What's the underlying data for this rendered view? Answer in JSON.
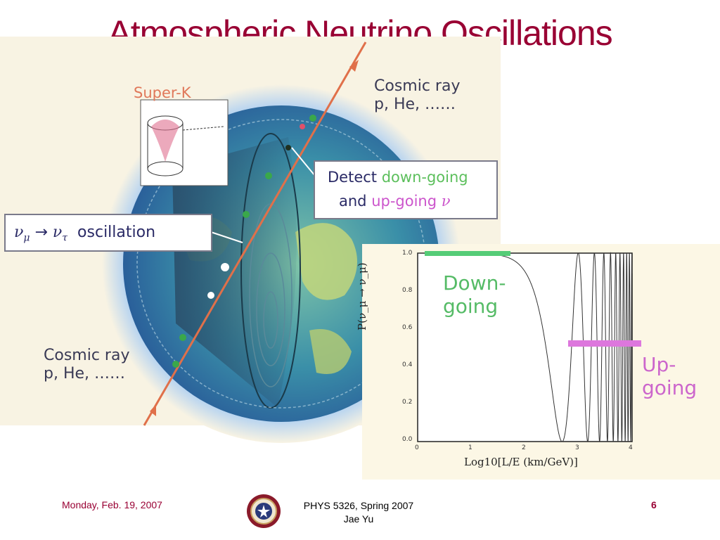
{
  "slide": {
    "title": "Atmospheric Neutrino Oscillations"
  },
  "diagram": {
    "super_k_label": "Super-K",
    "cosmic_ray_top": {
      "line1": "Cosmic ray",
      "line2": "p, He, ……"
    },
    "cosmic_ray_bottom": {
      "line1": "Cosmic ray",
      "line2": "p, He, ……"
    },
    "detect_box": {
      "word_detect": "Detect",
      "down_going": "down-going",
      "word_and": "and",
      "up_going": "up-going",
      "nu_symbol": "ν"
    },
    "oscillation_box": {
      "nu_mu": "ν",
      "mu_sub": "μ",
      "arrow": "→",
      "nu_tau": "ν",
      "tau_sub": "τ",
      "label": "oscillation"
    }
  },
  "plot": {
    "y_label": "P(ν_μ → ν_μ)",
    "x_label": "Log10[L/E (km/GeV)]",
    "x_ticks": [
      "0",
      "1",
      "2",
      "3",
      "4"
    ],
    "y_ticks": [
      "1.0",
      "0.8",
      "0.6",
      "0.4",
      "0.2",
      "0.0"
    ],
    "down_going_label": {
      "line1": "Down-",
      "line2": "going"
    },
    "up_going_label": "Up-going",
    "colors": {
      "down_going": "#55cc77",
      "up_going": "#dd77dd",
      "curve": "#333333"
    }
  },
  "footer": {
    "date": "Monday, Feb. 19, 2007",
    "course_line1": "PHYS 5326, Spring 2007",
    "course_line2": "Jae Yu",
    "page_number": "6"
  }
}
